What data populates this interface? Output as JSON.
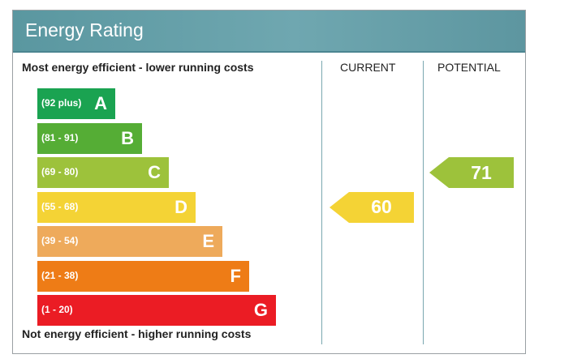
{
  "header": {
    "title": "Energy Rating"
  },
  "labels": {
    "top": "Most energy efficient - lower running costs",
    "bottom": "Not energy efficient - higher running costs",
    "current": "CURRENT",
    "potential": "POTENTIAL"
  },
  "chart_data": {
    "type": "bar",
    "title": "Energy Rating",
    "categories": [
      "A",
      "B",
      "C",
      "D",
      "E",
      "F",
      "G"
    ],
    "bands": [
      {
        "letter": "A",
        "range": "(92 plus)",
        "color": "#1aa351"
      },
      {
        "letter": "B",
        "range": "(81 - 91)",
        "color": "#55ad35"
      },
      {
        "letter": "C",
        "range": "(69 - 80)",
        "color": "#9dc23b"
      },
      {
        "letter": "D",
        "range": "(55 - 68)",
        "color": "#f4d335"
      },
      {
        "letter": "E",
        "range": "(39 - 54)",
        "color": "#eeaa5b"
      },
      {
        "letter": "F",
        "range": "(21 - 38)",
        "color": "#ee7c16"
      },
      {
        "letter": "G",
        "range": "(1 - 20)",
        "color": "#eb1c24"
      }
    ],
    "current": {
      "value": 60,
      "band": "D",
      "color": "#f4d335"
    },
    "potential": {
      "value": 71,
      "band": "C",
      "color": "#9dc23b"
    }
  }
}
